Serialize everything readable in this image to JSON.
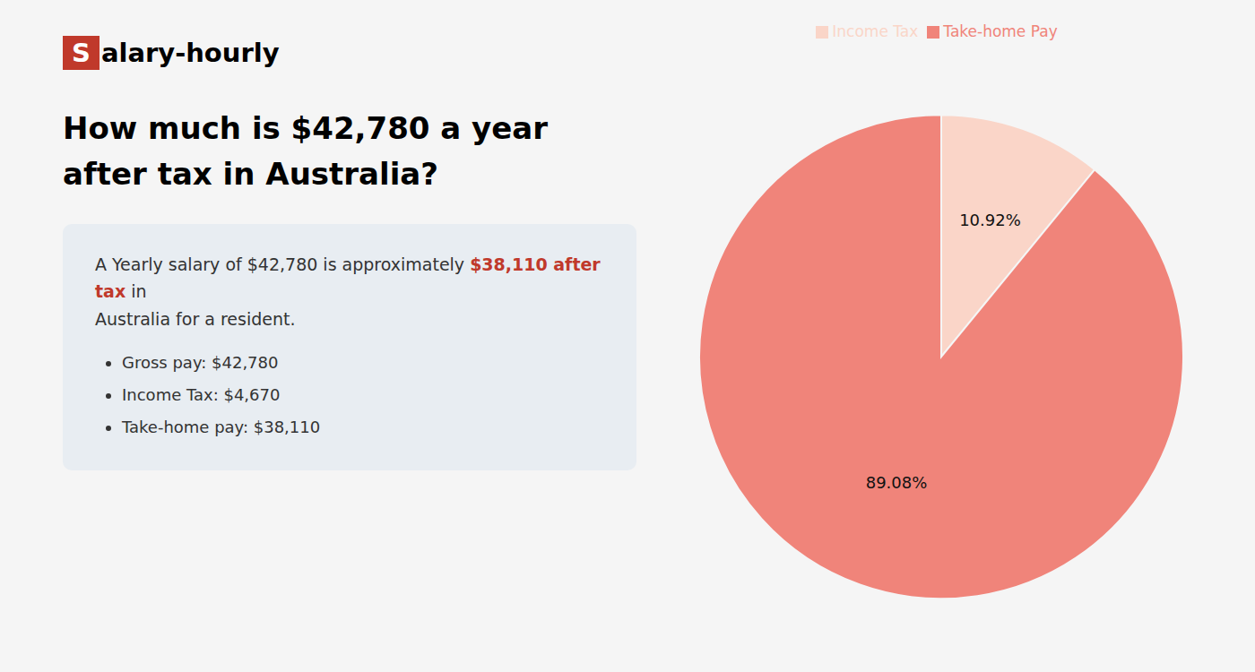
{
  "chart_data": {
    "type": "pie",
    "title": "How much is $42,780 a year after tax in Australia?",
    "categories": [
      "Income Tax",
      "Take-home Pay"
    ],
    "values": [
      10.92,
      89.08
    ],
    "value_labels": [
      "10.92%",
      "89.08%"
    ],
    "colors": [
      "#fad5c8",
      "#f0847a"
    ],
    "data_labels": true,
    "legend": "top",
    "annotations": {
      "logo": [
        {
          "text": "S",
          "color": "#c0392b"
        },
        {
          "text": "alary-hourly"
        }
      ],
      "summary": [
        [
          {
            "text": "A Yearly salary of $42,780 is approximately "
          },
          {
            "text": "$38,110 after tax",
            "color": "#c0392b"
          },
          {
            "text": " in"
          }
        ],
        [
          {
            "text": "Australia for a resident."
          }
        ]
      ],
      "bullets": [
        "Gross pay: $42,780",
        "Income Tax: $4,670",
        "Take-home pay: $38,110"
      ]
    }
  }
}
